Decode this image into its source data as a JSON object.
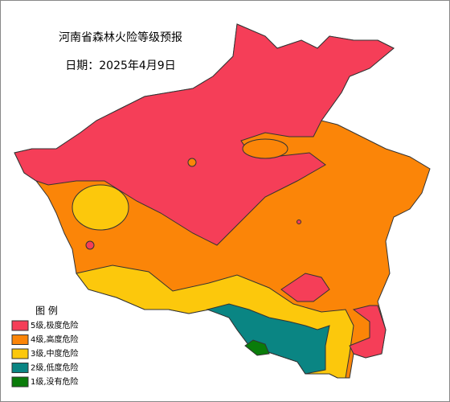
{
  "header": {
    "title": "河南省森林火险等级预报",
    "date": "日期：2025年4月9日"
  },
  "legend": {
    "title": "图  例",
    "items": [
      {
        "label": "5级,极度危险",
        "color": "#f53e58"
      },
      {
        "label": "4级,高度危险",
        "color": "#fb8508"
      },
      {
        "label": "3级,中度危险",
        "color": "#fcc80c"
      },
      {
        "label": "2级,低度危险",
        "color": "#0a8583"
      },
      {
        "label": "1级,没有危险",
        "color": "#0a7c0a"
      }
    ]
  }
}
